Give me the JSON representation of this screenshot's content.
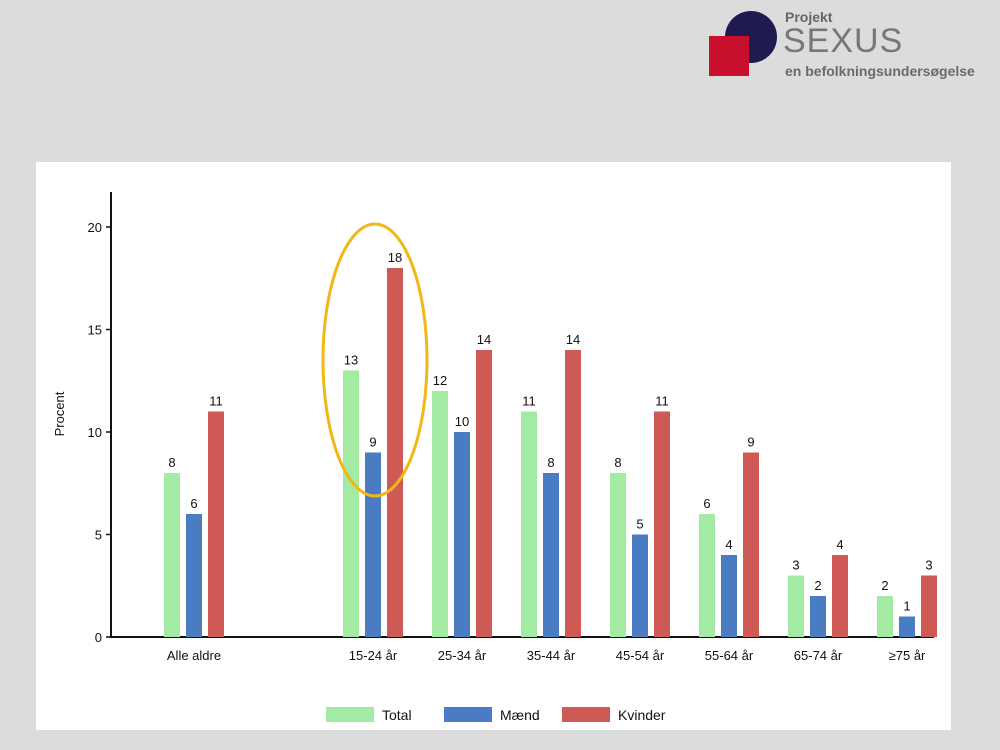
{
  "logo": {
    "line1": "Projekt",
    "line2": "SEXUS",
    "line3": "en befolkningsundersøgelse",
    "colors": {
      "circle": "#1f1a4f",
      "square": "#c8102e"
    }
  },
  "chart_data": {
    "type": "bar",
    "title": "",
    "xlabel": "",
    "ylabel": "Procent",
    "ylim": [
      0,
      21
    ],
    "yticks": [
      0,
      5,
      10,
      15,
      20
    ],
    "grid": false,
    "legend_position": "bottom",
    "categories": [
      "Alle aldre",
      "15-24 år",
      "25-34 år",
      "35-44 år",
      "45-54 år",
      "55-64 år",
      "65-74 år",
      "≥75 år"
    ],
    "series": [
      {
        "name": "Total",
        "color": "#a3eaa3",
        "values": [
          8,
          13,
          12,
          11,
          8,
          6,
          3,
          2
        ]
      },
      {
        "name": "Mænd",
        "color": "#4a7cc4",
        "values": [
          6,
          9,
          10,
          8,
          5,
          4,
          2,
          1
        ]
      },
      {
        "name": "Kvinder",
        "color": "#cf5a55",
        "values": [
          11,
          18,
          14,
          14,
          11,
          9,
          4,
          3
        ]
      }
    ],
    "highlight": {
      "category": "15-24 år",
      "shape": "ellipse",
      "color": "#f2b616"
    }
  }
}
